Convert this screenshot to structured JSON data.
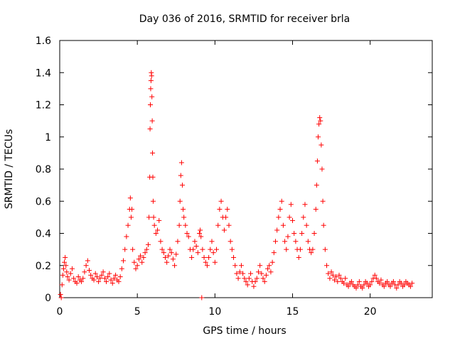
{
  "chart_data": {
    "type": "scatter",
    "title": "Day 036 of 2016, SRMTID for receiver brla",
    "xlabel": "GPS time / hours",
    "ylabel": "SRMTID / TECUs",
    "xlim": [
      0,
      24
    ],
    "ylim": [
      0,
      1.6
    ],
    "x_ticks": [
      0,
      5,
      10,
      15,
      20
    ],
    "x_tick_labels": [
      "0",
      "5",
      "10",
      "15",
      "20"
    ],
    "y_ticks": [
      0,
      0.2,
      0.4,
      0.6,
      0.8,
      1.0,
      1.2,
      1.4,
      1.6
    ],
    "y_tick_labels": [
      "0",
      "0.2",
      "0.4",
      "0.6",
      "0.8",
      "1",
      "1.2",
      "1.4",
      "1.6"
    ],
    "grid": false,
    "marker": "plus",
    "marker_color": "#ff0000",
    "series": [
      {
        "name": "SRMTID",
        "points": [
          [
            0.05,
            0.02
          ],
          [
            0.1,
            0.0
          ],
          [
            0.15,
            0.08
          ],
          [
            0.2,
            0.14
          ],
          [
            0.25,
            0.18
          ],
          [
            0.3,
            0.22
          ],
          [
            0.35,
            0.25
          ],
          [
            0.4,
            0.2
          ],
          [
            0.45,
            0.16
          ],
          [
            0.5,
            0.13
          ],
          [
            0.6,
            0.11
          ],
          [
            0.7,
            0.15
          ],
          [
            0.8,
            0.18
          ],
          [
            0.9,
            0.12
          ],
          [
            1.0,
            0.1
          ],
          [
            1.1,
            0.09
          ],
          [
            1.2,
            0.13
          ],
          [
            1.3,
            0.11
          ],
          [
            1.4,
            0.1
          ],
          [
            1.5,
            0.12
          ],
          [
            1.6,
            0.16
          ],
          [
            1.7,
            0.2
          ],
          [
            1.8,
            0.23
          ],
          [
            1.9,
            0.17
          ],
          [
            2.0,
            0.14
          ],
          [
            2.1,
            0.12
          ],
          [
            2.2,
            0.11
          ],
          [
            2.3,
            0.15
          ],
          [
            2.4,
            0.13
          ],
          [
            2.5,
            0.1
          ],
          [
            2.6,
            0.12
          ],
          [
            2.7,
            0.14
          ],
          [
            2.8,
            0.16
          ],
          [
            2.9,
            0.12
          ],
          [
            3.0,
            0.1
          ],
          [
            3.1,
            0.13
          ],
          [
            3.2,
            0.15
          ],
          [
            3.3,
            0.11
          ],
          [
            3.4,
            0.09
          ],
          [
            3.5,
            0.12
          ],
          [
            3.6,
            0.14
          ],
          [
            3.7,
            0.11
          ],
          [
            3.8,
            0.1
          ],
          [
            3.9,
            0.13
          ],
          [
            4.0,
            0.18
          ],
          [
            4.1,
            0.23
          ],
          [
            4.2,
            0.3
          ],
          [
            4.3,
            0.38
          ],
          [
            4.4,
            0.45
          ],
          [
            4.5,
            0.55
          ],
          [
            4.55,
            0.62
          ],
          [
            4.6,
            0.5
          ],
          [
            4.65,
            0.55
          ],
          [
            4.7,
            0.3
          ],
          [
            4.8,
            0.22
          ],
          [
            4.9,
            0.18
          ],
          [
            5.0,
            0.2
          ],
          [
            5.1,
            0.24
          ],
          [
            5.2,
            0.26
          ],
          [
            5.3,
            0.22
          ],
          [
            5.4,
            0.25
          ],
          [
            5.5,
            0.28
          ],
          [
            5.6,
            0.3
          ],
          [
            5.7,
            0.33
          ],
          [
            5.75,
            0.5
          ],
          [
            5.8,
            0.75
          ],
          [
            5.82,
            1.05
          ],
          [
            5.84,
            1.2
          ],
          [
            5.86,
            1.3
          ],
          [
            5.88,
            1.35
          ],
          [
            5.9,
            1.4
          ],
          [
            5.92,
            1.38
          ],
          [
            5.94,
            1.25
          ],
          [
            5.96,
            1.1
          ],
          [
            5.98,
            0.9
          ],
          [
            6.0,
            0.75
          ],
          [
            6.02,
            0.6
          ],
          [
            6.05,
            0.5
          ],
          [
            6.1,
            0.45
          ],
          [
            6.2,
            0.4
          ],
          [
            6.3,
            0.42
          ],
          [
            6.4,
            0.48
          ],
          [
            6.5,
            0.35
          ],
          [
            6.6,
            0.3
          ],
          [
            6.7,
            0.28
          ],
          [
            6.8,
            0.25
          ],
          [
            6.9,
            0.22
          ],
          [
            7.0,
            0.26
          ],
          [
            7.1,
            0.3
          ],
          [
            7.2,
            0.28
          ],
          [
            7.3,
            0.24
          ],
          [
            7.4,
            0.2
          ],
          [
            7.5,
            0.27
          ],
          [
            7.6,
            0.35
          ],
          [
            7.7,
            0.45
          ],
          [
            7.75,
            0.6
          ],
          [
            7.8,
            0.76
          ],
          [
            7.85,
            0.84
          ],
          [
            7.9,
            0.7
          ],
          [
            7.95,
            0.55
          ],
          [
            8.0,
            0.5
          ],
          [
            8.1,
            0.45
          ],
          [
            8.2,
            0.4
          ],
          [
            8.3,
            0.38
          ],
          [
            8.4,
            0.3
          ],
          [
            8.5,
            0.25
          ],
          [
            8.6,
            0.3
          ],
          [
            8.7,
            0.35
          ],
          [
            8.8,
            0.32
          ],
          [
            8.9,
            0.28
          ],
          [
            9.0,
            0.4
          ],
          [
            9.05,
            0.42
          ],
          [
            9.1,
            0.38
          ],
          [
            9.15,
            0.0
          ],
          [
            9.2,
            0.3
          ],
          [
            9.3,
            0.25
          ],
          [
            9.4,
            0.22
          ],
          [
            9.5,
            0.2
          ],
          [
            9.6,
            0.25
          ],
          [
            9.7,
            0.3
          ],
          [
            9.8,
            0.35
          ],
          [
            9.9,
            0.28
          ],
          [
            10.0,
            0.22
          ],
          [
            10.1,
            0.3
          ],
          [
            10.2,
            0.45
          ],
          [
            10.3,
            0.55
          ],
          [
            10.4,
            0.6
          ],
          [
            10.5,
            0.5
          ],
          [
            10.6,
            0.42
          ],
          [
            10.7,
            0.5
          ],
          [
            10.8,
            0.55
          ],
          [
            10.9,
            0.45
          ],
          [
            11.0,
            0.35
          ],
          [
            11.1,
            0.3
          ],
          [
            11.2,
            0.25
          ],
          [
            11.3,
            0.2
          ],
          [
            11.4,
            0.15
          ],
          [
            11.5,
            0.12
          ],
          [
            11.6,
            0.16
          ],
          [
            11.7,
            0.2
          ],
          [
            11.8,
            0.15
          ],
          [
            11.9,
            0.12
          ],
          [
            12.0,
            0.1
          ],
          [
            12.1,
            0.08
          ],
          [
            12.2,
            0.12
          ],
          [
            12.3,
            0.15
          ],
          [
            12.4,
            0.1
          ],
          [
            12.5,
            0.07
          ],
          [
            12.6,
            0.1
          ],
          [
            12.7,
            0.12
          ],
          [
            12.8,
            0.16
          ],
          [
            12.9,
            0.2
          ],
          [
            13.0,
            0.15
          ],
          [
            13.1,
            0.12
          ],
          [
            13.2,
            0.1
          ],
          [
            13.3,
            0.14
          ],
          [
            13.4,
            0.18
          ],
          [
            13.5,
            0.2
          ],
          [
            13.6,
            0.16
          ],
          [
            13.7,
            0.22
          ],
          [
            13.8,
            0.28
          ],
          [
            13.9,
            0.35
          ],
          [
            14.0,
            0.42
          ],
          [
            14.1,
            0.5
          ],
          [
            14.2,
            0.55
          ],
          [
            14.3,
            0.6
          ],
          [
            14.4,
            0.45
          ],
          [
            14.5,
            0.35
          ],
          [
            14.6,
            0.3
          ],
          [
            14.7,
            0.38
          ],
          [
            14.8,
            0.5
          ],
          [
            14.9,
            0.58
          ],
          [
            15.0,
            0.48
          ],
          [
            15.1,
            0.4
          ],
          [
            15.2,
            0.35
          ],
          [
            15.3,
            0.3
          ],
          [
            15.4,
            0.25
          ],
          [
            15.5,
            0.3
          ],
          [
            15.6,
            0.4
          ],
          [
            15.7,
            0.5
          ],
          [
            15.8,
            0.58
          ],
          [
            15.9,
            0.45
          ],
          [
            16.0,
            0.35
          ],
          [
            16.1,
            0.3
          ],
          [
            16.2,
            0.28
          ],
          [
            16.3,
            0.3
          ],
          [
            16.4,
            0.4
          ],
          [
            16.5,
            0.55
          ],
          [
            16.55,
            0.7
          ],
          [
            16.6,
            0.85
          ],
          [
            16.65,
            1.0
          ],
          [
            16.7,
            1.08
          ],
          [
            16.75,
            1.12
          ],
          [
            16.8,
            1.1
          ],
          [
            16.85,
            0.95
          ],
          [
            16.9,
            0.8
          ],
          [
            16.95,
            0.6
          ],
          [
            17.0,
            0.45
          ],
          [
            17.1,
            0.3
          ],
          [
            17.2,
            0.2
          ],
          [
            17.3,
            0.15
          ],
          [
            17.4,
            0.12
          ],
          [
            17.5,
            0.16
          ],
          [
            17.6,
            0.14
          ],
          [
            17.7,
            0.11
          ],
          [
            17.8,
            0.13
          ],
          [
            17.9,
            0.1
          ],
          [
            18.0,
            0.14
          ],
          [
            18.1,
            0.12
          ],
          [
            18.2,
            0.1
          ],
          [
            18.3,
            0.09
          ],
          [
            18.4,
            0.12
          ],
          [
            18.5,
            0.08
          ],
          [
            18.6,
            0.07
          ],
          [
            18.7,
            0.09
          ],
          [
            18.8,
            0.1
          ],
          [
            18.9,
            0.08
          ],
          [
            19.0,
            0.07
          ],
          [
            19.1,
            0.06
          ],
          [
            19.2,
            0.08
          ],
          [
            19.3,
            0.1
          ],
          [
            19.4,
            0.07
          ],
          [
            19.5,
            0.06
          ],
          [
            19.6,
            0.08
          ],
          [
            19.7,
            0.1
          ],
          [
            19.8,
            0.09
          ],
          [
            19.9,
            0.07
          ],
          [
            20.0,
            0.08
          ],
          [
            20.1,
            0.1
          ],
          [
            20.2,
            0.12
          ],
          [
            20.3,
            0.14
          ],
          [
            20.4,
            0.12
          ],
          [
            20.5,
            0.1
          ],
          [
            20.6,
            0.09
          ],
          [
            20.7,
            0.11
          ],
          [
            20.8,
            0.08
          ],
          [
            20.9,
            0.07
          ],
          [
            21.0,
            0.09
          ],
          [
            21.1,
            0.1
          ],
          [
            21.2,
            0.08
          ],
          [
            21.3,
            0.07
          ],
          [
            21.4,
            0.09
          ],
          [
            21.5,
            0.1
          ],
          [
            21.6,
            0.08
          ],
          [
            21.7,
            0.06
          ],
          [
            21.8,
            0.08
          ],
          [
            21.9,
            0.1
          ],
          [
            22.0,
            0.09
          ],
          [
            22.1,
            0.07
          ],
          [
            22.2,
            0.08
          ],
          [
            22.3,
            0.1
          ],
          [
            22.4,
            0.09
          ],
          [
            22.5,
            0.08
          ],
          [
            22.6,
            0.07
          ],
          [
            22.7,
            0.09
          ]
        ]
      }
    ]
  }
}
